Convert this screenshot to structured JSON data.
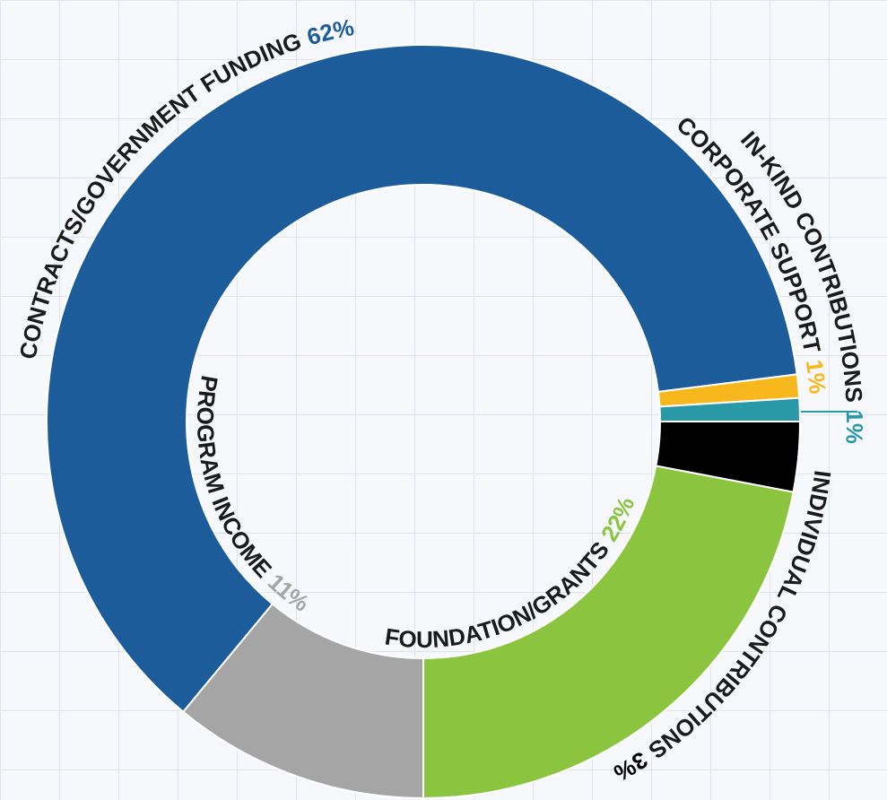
{
  "chart_data": {
    "type": "donut",
    "categories": [
      "PROGRAM INCOME",
      "CONTRACTS/GOVERNMENT FUNDING",
      "CORPORATE SUPPORT",
      "IN-KIND CONTRIBUTIONS",
      "INDIVIDUAL CONTRIBUTIONS",
      "FOUNDATION/GRANTS"
    ],
    "values": [
      11,
      62,
      1,
      1,
      3,
      22
    ],
    "value_labels": [
      "11%",
      "62%",
      "1%",
      "1%",
      "3%",
      "22%"
    ],
    "colors": [
      "#a5a5a5",
      "#1c5c9b",
      "#f6b81d",
      "#2999a7",
      "#000000",
      "#8bc540"
    ]
  }
}
